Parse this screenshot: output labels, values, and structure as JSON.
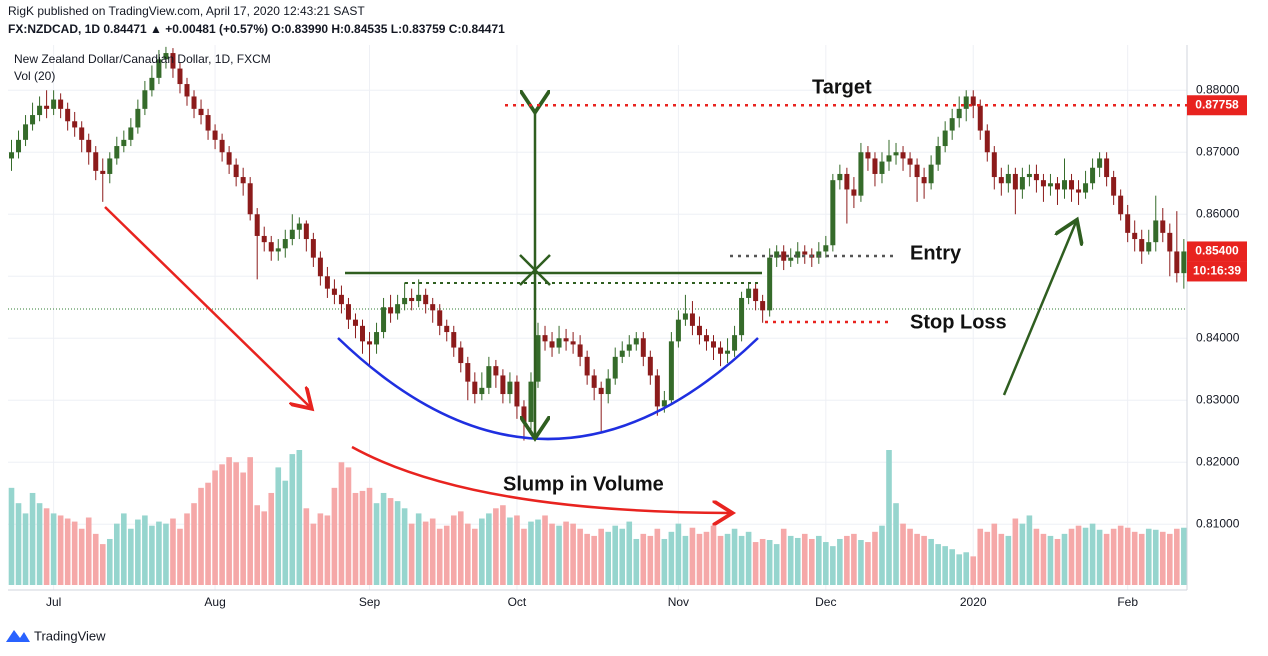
{
  "header": {
    "line1": "RigK published on TradingView.com, April 17, 2020 12:43:21 SAST",
    "line2": "FX:NZDCAD, 1D  0.84471  ▲ +0.00481 (+0.57%)  O:0.83990  H:0.84535  L:0.83759  C:0.84471"
  },
  "chart_data": {
    "type": "candlestick",
    "title": "New Zealand Dollar/Canadian Dollar, 1D, FXCM",
    "volume_label": "Vol (20)",
    "categories": [
      null,
      null,
      null,
      null,
      null,
      null,
      "Jul",
      null,
      null,
      null,
      null,
      null,
      null,
      null,
      null,
      null,
      null,
      null,
      null,
      null,
      null,
      null,
      null,
      null,
      null,
      null,
      null,
      null,
      null,
      "Aug",
      null,
      null,
      null,
      null,
      null,
      null,
      null,
      null,
      null,
      null,
      null,
      null,
      null,
      null,
      null,
      null,
      null,
      null,
      null,
      null,
      null,
      "Sep",
      null,
      null,
      null,
      null,
      null,
      null,
      null,
      null,
      null,
      null,
      null,
      null,
      null,
      null,
      null,
      null,
      null,
      null,
      null,
      null,
      "Oct",
      null,
      null,
      null,
      null,
      null,
      null,
      null,
      null,
      null,
      null,
      null,
      null,
      null,
      null,
      null,
      null,
      null,
      null,
      null,
      null,
      null,
      null,
      "Nov",
      null,
      null,
      null,
      null,
      null,
      null,
      null,
      null,
      null,
      null,
      null,
      null,
      null,
      null,
      null,
      null,
      null,
      null,
      null,
      null,
      "Dec",
      null,
      null,
      null,
      null,
      null,
      null,
      null,
      null,
      null,
      null,
      null,
      null,
      null,
      null,
      null,
      null,
      null,
      null,
      null,
      null,
      "2020",
      null,
      null,
      null,
      null,
      null,
      null,
      null,
      null,
      null,
      null,
      null,
      null,
      null,
      null,
      null,
      null,
      null,
      null,
      null,
      null,
      null,
      "Feb",
      null,
      null,
      null,
      null,
      null,
      null,
      null,
      null
    ],
    "open": [
      0.869,
      0.87,
      0.872,
      0.8745,
      0.876,
      0.8775,
      0.877,
      0.8785,
      0.877,
      0.875,
      0.874,
      0.872,
      0.87,
      0.867,
      0.8665,
      0.869,
      0.871,
      0.872,
      0.874,
      0.877,
      0.88,
      0.882,
      0.885,
      0.886,
      0.8835,
      0.881,
      0.879,
      0.877,
      0.876,
      0.8735,
      0.872,
      0.87,
      0.868,
      0.866,
      0.865,
      0.86,
      0.8565,
      0.8555,
      0.854,
      0.8545,
      0.856,
      0.8575,
      0.8585,
      0.856,
      0.853,
      0.85,
      0.848,
      0.847,
      0.8455,
      0.843,
      0.842,
      0.8395,
      0.839,
      0.841,
      0.845,
      0.844,
      0.8455,
      0.8465,
      0.846,
      0.847,
      0.8455,
      0.8445,
      0.842,
      0.841,
      0.8385,
      0.836,
      0.833,
      0.831,
      0.832,
      0.8355,
      0.834,
      0.831,
      0.833,
      0.829,
      0.8265,
      0.833,
      0.8405,
      0.8395,
      0.8385,
      0.84,
      0.8395,
      0.839,
      0.837,
      0.834,
      0.832,
      0.831,
      0.8335,
      0.837,
      0.838,
      0.839,
      0.84,
      0.837,
      0.834,
      0.829,
      0.83,
      0.8395,
      0.843,
      0.844,
      0.842,
      0.8405,
      0.8395,
      0.8385,
      0.8375,
      0.838,
      0.8405,
      0.8465,
      0.848,
      0.846,
      0.8445,
      0.853,
      0.854,
      0.8525,
      0.853,
      0.854,
      0.8535,
      0.853,
      0.854,
      0.855,
      0.8655,
      0.8665,
      0.864,
      0.863,
      0.87,
      0.869,
      0.8665,
      0.8685,
      0.8695,
      0.87,
      0.869,
      0.868,
      0.866,
      0.865,
      0.868,
      0.871,
      0.8735,
      0.8755,
      0.877,
      0.879,
      0.8775,
      0.8735,
      0.87,
      0.866,
      0.865,
      0.8665,
      0.864,
      0.866,
      0.8665,
      0.8655,
      0.8645,
      0.865,
      0.864,
      0.8655,
      0.864,
      0.8635,
      0.865,
      0.8675,
      0.869,
      0.866,
      0.863,
      0.86,
      0.857,
      0.856,
      0.854,
      0.8555,
      0.859,
      0.857,
      0.854,
      0.8505
    ],
    "high": [
      0.872,
      0.8735,
      0.876,
      0.878,
      0.879,
      0.88,
      0.88,
      0.8795,
      0.878,
      0.8765,
      0.875,
      0.873,
      0.871,
      0.869,
      0.87,
      0.8725,
      0.8735,
      0.8755,
      0.8785,
      0.8815,
      0.884,
      0.8865,
      0.887,
      0.8868,
      0.8845,
      0.882,
      0.88,
      0.8785,
      0.877,
      0.8745,
      0.873,
      0.871,
      0.869,
      0.8675,
      0.866,
      0.861,
      0.858,
      0.8565,
      0.856,
      0.8575,
      0.86,
      0.8595,
      0.859,
      0.857,
      0.854,
      0.8515,
      0.8495,
      0.8485,
      0.8465,
      0.844,
      0.843,
      0.841,
      0.8425,
      0.8465,
      0.847,
      0.847,
      0.849,
      0.848,
      0.8495,
      0.848,
      0.8465,
      0.8455,
      0.843,
      0.842,
      0.8395,
      0.837,
      0.8345,
      0.8345,
      0.837,
      0.8365,
      0.835,
      0.8345,
      0.834,
      0.83,
      0.8345,
      0.8425,
      0.842,
      0.841,
      0.842,
      0.8415,
      0.841,
      0.8405,
      0.838,
      0.835,
      0.833,
      0.835,
      0.8385,
      0.8395,
      0.8405,
      0.841,
      0.841,
      0.838,
      0.835,
      0.8315,
      0.841,
      0.8445,
      0.847,
      0.846,
      0.8435,
      0.8415,
      0.8405,
      0.8395,
      0.84,
      0.842,
      0.8475,
      0.849,
      0.849,
      0.847,
      0.8545,
      0.855,
      0.855,
      0.8545,
      0.8555,
      0.855,
      0.8545,
      0.8555,
      0.8565,
      0.8665,
      0.868,
      0.8675,
      0.866,
      0.8715,
      0.871,
      0.87,
      0.87,
      0.872,
      0.8715,
      0.871,
      0.87,
      0.869,
      0.8675,
      0.8695,
      0.8725,
      0.875,
      0.877,
      0.879,
      0.88,
      0.88,
      0.8785,
      0.8745,
      0.871,
      0.8675,
      0.868,
      0.8675,
      0.8675,
      0.868,
      0.868,
      0.8665,
      0.8665,
      0.866,
      0.869,
      0.8665,
      0.8655,
      0.867,
      0.869,
      0.87,
      0.87,
      0.867,
      0.864,
      0.8615,
      0.859,
      0.8575,
      0.8575,
      0.863,
      0.861,
      0.8585,
      0.8605,
      0.856
    ],
    "low": [
      0.867,
      0.869,
      0.871,
      0.8735,
      0.875,
      0.8755,
      0.876,
      0.8755,
      0.8735,
      0.8725,
      0.87,
      0.868,
      0.8655,
      0.862,
      0.865,
      0.868,
      0.87,
      0.871,
      0.873,
      0.876,
      0.879,
      0.881,
      0.8835,
      0.882,
      0.8795,
      0.8775,
      0.8755,
      0.8745,
      0.872,
      0.8705,
      0.8685,
      0.8665,
      0.8645,
      0.863,
      0.859,
      0.8495,
      0.854,
      0.8525,
      0.8525,
      0.853,
      0.855,
      0.856,
      0.854,
      0.8515,
      0.8485,
      0.8465,
      0.8455,
      0.844,
      0.8415,
      0.84,
      0.8375,
      0.8355,
      0.8375,
      0.84,
      0.8425,
      0.843,
      0.8445,
      0.8445,
      0.845,
      0.844,
      0.8425,
      0.8405,
      0.8395,
      0.837,
      0.8345,
      0.83,
      0.8295,
      0.83,
      0.831,
      0.832,
      0.8295,
      0.8295,
      0.827,
      0.8235,
      0.825,
      0.832,
      0.838,
      0.837,
      0.8375,
      0.838,
      0.8375,
      0.8355,
      0.8325,
      0.83,
      0.825,
      0.8295,
      0.8325,
      0.836,
      0.837,
      0.838,
      0.8355,
      0.8325,
      0.8275,
      0.828,
      0.8295,
      0.8385,
      0.842,
      0.8405,
      0.839,
      0.838,
      0.8365,
      0.8355,
      0.836,
      0.837,
      0.8395,
      0.8455,
      0.8445,
      0.8425,
      0.8435,
      0.8515,
      0.851,
      0.8515,
      0.852,
      0.852,
      0.8515,
      0.852,
      0.853,
      0.854,
      0.864,
      0.8585,
      0.861,
      0.862,
      0.867,
      0.8645,
      0.865,
      0.867,
      0.868,
      0.867,
      0.866,
      0.862,
      0.8625,
      0.864,
      0.867,
      0.87,
      0.872,
      0.874,
      0.875,
      0.8755,
      0.872,
      0.8685,
      0.864,
      0.863,
      0.8635,
      0.86,
      0.8625,
      0.8645,
      0.8635,
      0.862,
      0.863,
      0.8615,
      0.8625,
      0.862,
      0.8615,
      0.8625,
      0.864,
      0.866,
      0.8645,
      0.8615,
      0.859,
      0.8555,
      0.854,
      0.852,
      0.8535,
      0.854,
      0.8555,
      0.85,
      0.849,
      0.848
    ],
    "close": [
      0.87,
      0.872,
      0.8745,
      0.876,
      0.8775,
      0.877,
      0.8785,
      0.877,
      0.875,
      0.874,
      0.872,
      0.87,
      0.867,
      0.8665,
      0.869,
      0.871,
      0.872,
      0.874,
      0.877,
      0.88,
      0.882,
      0.885,
      0.886,
      0.8835,
      0.881,
      0.879,
      0.877,
      0.876,
      0.8735,
      0.872,
      0.87,
      0.868,
      0.866,
      0.865,
      0.86,
      0.8565,
      0.8555,
      0.854,
      0.8545,
      0.856,
      0.8575,
      0.8585,
      0.856,
      0.853,
      0.85,
      0.848,
      0.847,
      0.8455,
      0.843,
      0.842,
      0.8395,
      0.839,
      0.841,
      0.845,
      0.844,
      0.8455,
      0.8465,
      0.846,
      0.847,
      0.8455,
      0.8445,
      0.842,
      0.841,
      0.8385,
      0.836,
      0.833,
      0.831,
      0.832,
      0.8355,
      0.834,
      0.831,
      0.833,
      0.829,
      0.8265,
      0.833,
      0.8405,
      0.8395,
      0.8385,
      0.84,
      0.8395,
      0.839,
      0.837,
      0.834,
      0.832,
      0.831,
      0.8335,
      0.837,
      0.838,
      0.839,
      0.84,
      0.837,
      0.834,
      0.829,
      0.83,
      0.8395,
      0.843,
      0.844,
      0.842,
      0.8405,
      0.8395,
      0.8385,
      0.8375,
      0.838,
      0.8405,
      0.8465,
      0.848,
      0.846,
      0.8445,
      0.853,
      0.854,
      0.8525,
      0.853,
      0.854,
      0.8535,
      0.853,
      0.854,
      0.855,
      0.8655,
      0.8665,
      0.864,
      0.863,
      0.87,
      0.869,
      0.8665,
      0.8685,
      0.8695,
      0.87,
      0.869,
      0.868,
      0.866,
      0.865,
      0.868,
      0.871,
      0.8735,
      0.8755,
      0.877,
      0.879,
      0.8775,
      0.8735,
      0.87,
      0.866,
      0.865,
      0.8665,
      0.864,
      0.866,
      0.8665,
      0.8655,
      0.8645,
      0.865,
      0.864,
      0.8655,
      0.864,
      0.8635,
      0.865,
      0.8675,
      0.869,
      0.866,
      0.863,
      0.86,
      0.857,
      0.856,
      0.854,
      0.8555,
      0.859,
      0.857,
      0.854,
      0.8505,
      0.854
    ],
    "volume": [
      95,
      80,
      70,
      90,
      80,
      75,
      70,
      68,
      65,
      62,
      55,
      66,
      50,
      40,
      45,
      60,
      70,
      55,
      64,
      68,
      58,
      62,
      60,
      65,
      55,
      70,
      80,
      95,
      100,
      112,
      118,
      125,
      120,
      110,
      125,
      78,
      72,
      90,
      115,
      102,
      128,
      132,
      75,
      60,
      70,
      68,
      95,
      120,
      115,
      90,
      92,
      95,
      80,
      90,
      85,
      82,
      75,
      60,
      70,
      62,
      65,
      55,
      58,
      68,
      72,
      60,
      55,
      65,
      70,
      75,
      78,
      66,
      68,
      55,
      62,
      64,
      68,
      60,
      58,
      62,
      60,
      55,
      50,
      48,
      55,
      52,
      58,
      55,
      62,
      45,
      50,
      48,
      55,
      45,
      52,
      60,
      48,
      56,
      50,
      52,
      58,
      48,
      50,
      55,
      48,
      52,
      42,
      45,
      44,
      40,
      55,
      48,
      46,
      50,
      45,
      48,
      42,
      38,
      45,
      48,
      50,
      44,
      42,
      52,
      58,
      132,
      80,
      60,
      55,
      50,
      48,
      45,
      40,
      38,
      35,
      30,
      32,
      28,
      55,
      52,
      60,
      50,
      48,
      65,
      60,
      68,
      55,
      50,
      48,
      45,
      50,
      55,
      58,
      56,
      60,
      54,
      50,
      55,
      58,
      56,
      52,
      50,
      55,
      54,
      52,
      50,
      55,
      56
    ],
    "up_color": "#356b2a",
    "down_color": "#8c1b1b",
    "volume_up_color": "#96d5ce",
    "volume_down_color": "#f5a8a8",
    "ylim": [
      0.8002,
      0.8873
    ],
    "yticks": [
      {
        "value": 0.88,
        "label": "0.88000"
      },
      {
        "value": 0.87,
        "label": "0.87000"
      },
      {
        "value": 0.86,
        "label": "0.86000"
      },
      {
        "value": 0.85,
        "label": "0.85000"
      },
      {
        "value": 0.84,
        "label": "0.84000"
      },
      {
        "value": 0.83,
        "label": "0.83000"
      },
      {
        "value": 0.82,
        "label": "0.82000"
      },
      {
        "value": 0.81,
        "label": "0.81000"
      }
    ],
    "grid": true,
    "current_price": 0.84471,
    "price_labels": [
      0.87758,
      {
        "value": 0.854,
        "label": "0.85400"
      }
    ],
    "countdown": "10:16:39",
    "annotations": {
      "target": "Target",
      "entry": "Entry",
      "stop_loss": "Stop Loss",
      "volume_note": "Slump in Volume"
    }
  },
  "footer": {
    "brand": "TradingView"
  }
}
